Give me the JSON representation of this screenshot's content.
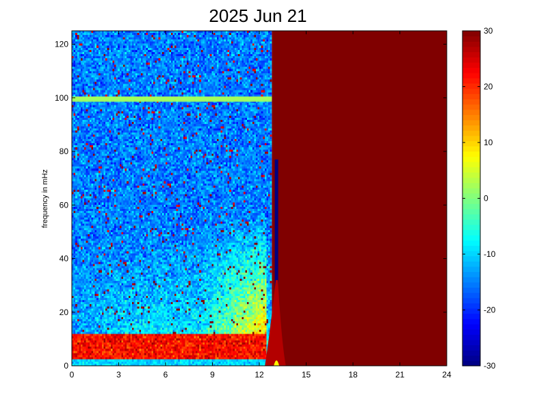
{
  "chart_data": {
    "type": "heatmap",
    "title": "2025 Jun 21",
    "xlabel": "",
    "ylabel": "frequency in mHz",
    "xlim": [
      0,
      24
    ],
    "ylim": [
      0,
      125
    ],
    "xticks": [
      0,
      3,
      6,
      9,
      12,
      15,
      18,
      21,
      24
    ],
    "yticks": [
      0,
      20,
      40,
      60,
      80,
      100,
      120
    ],
    "colorbar": {
      "colormap": "jet",
      "clim": [
        -30,
        30
      ],
      "ticks": [
        -30,
        -20,
        -10,
        0,
        10,
        20,
        30
      ]
    },
    "colors": {
      "saturated": "#800000",
      "background_field": "#2f7fff"
    },
    "regions": [
      {
        "description": "noise field",
        "x": [
          0,
          12.8
        ],
        "y": [
          0,
          125
        ],
        "value_dB_typical": -15
      },
      {
        "description": "spectral line",
        "x": [
          0,
          12.8
        ],
        "y": [
          98.5,
          100.5
        ],
        "value_dB": 2
      },
      {
        "description": "low-frequency band",
        "x": [
          0,
          12.5
        ],
        "y": [
          2,
          12
        ],
        "value_dB_typical": 22
      },
      {
        "description": "elevated broadband",
        "x": [
          8,
          12.5
        ],
        "y": [
          0,
          60
        ],
        "value_dB_typical": 5
      },
      {
        "description": "saturated (no data)",
        "x": [
          12.8,
          24
        ],
        "y": [
          0,
          125
        ],
        "value_dB": 30
      }
    ],
    "spike": {
      "x": 13.1,
      "ymax": 77,
      "value_dB": -30
    }
  }
}
